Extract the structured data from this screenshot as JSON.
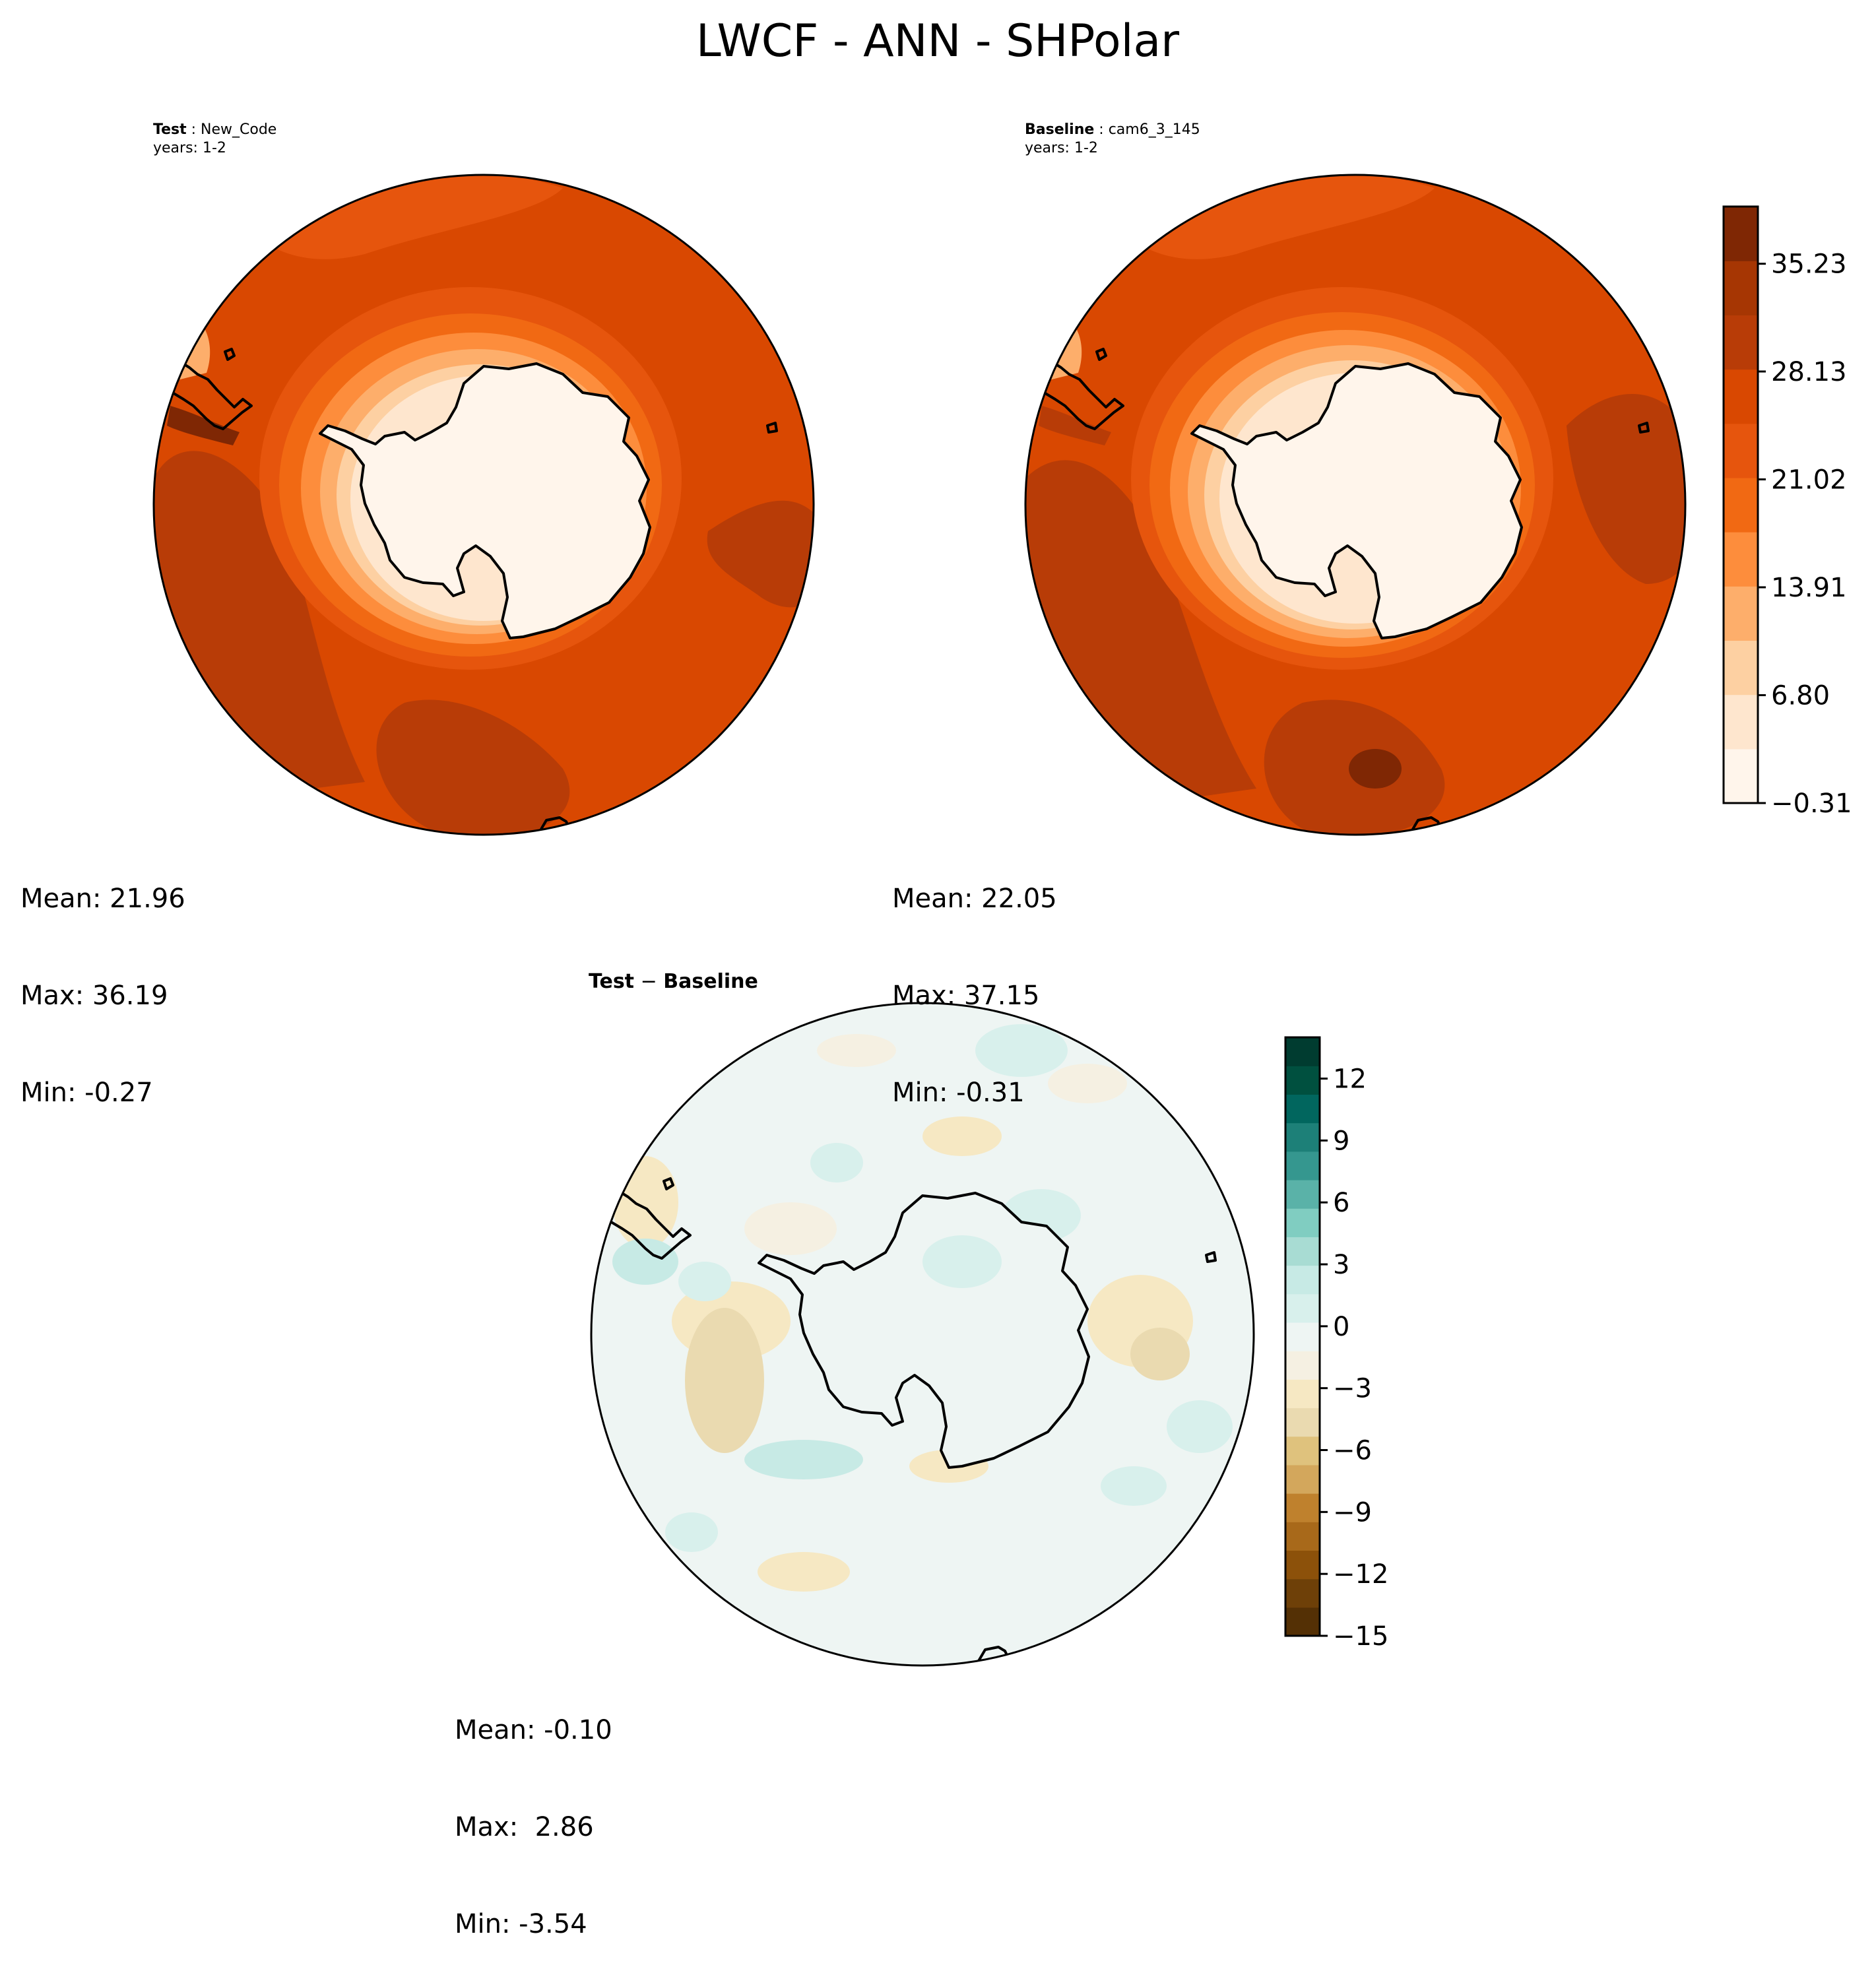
{
  "figure": {
    "title": "LWCF - ANN - SHPolar"
  },
  "panels": {
    "test": {
      "label_bold": "Test",
      "label_name": "New_Code",
      "years": "years: 1-2",
      "stats": {
        "mean": "Mean: 21.96",
        "max": "Max: 36.19",
        "min": "Min: -0.27"
      }
    },
    "baseline": {
      "label_bold": "Baseline",
      "label_name": "cam6_3_145",
      "years": "years: 1-2",
      "stats": {
        "mean": "Mean: 22.05",
        "max": "Max: 37.15",
        "min": "Min: -0.31"
      }
    },
    "diff": {
      "label_bold_1": "Test",
      "label_op": "−",
      "label_bold_2": "Baseline",
      "stats": {
        "mean": "Mean: -0.10",
        "max": "Max:  2.86",
        "min": "Min: -3.54"
      }
    }
  },
  "colorbar_main": {
    "ticks": [
      "35.23",
      "28.13",
      "21.02",
      "13.91",
      "6.80",
      "−0.31"
    ],
    "tick_values": [
      35.23,
      28.13,
      21.02,
      13.91,
      6.8,
      -0.31
    ],
    "range": [
      -0.31,
      39.0
    ],
    "colors": [
      "#fff5eb",
      "#fee6ce",
      "#fdd0a2",
      "#fdae6b",
      "#fd8d3c",
      "#f16913",
      "#e6550d",
      "#d94801",
      "#b83c07",
      "#a63603",
      "#7f2704"
    ]
  },
  "colorbar_diff": {
    "ticks": [
      "12",
      "9",
      "6",
      "3",
      "0",
      "−3",
      "−6",
      "−9",
      "−12",
      "−15"
    ],
    "tick_values": [
      12,
      9,
      6,
      3,
      0,
      -3,
      -6,
      -9,
      -12,
      -15
    ],
    "range": [
      -15,
      14
    ],
    "colors": [
      "#543005",
      "#6e4008",
      "#8c510a",
      "#a8691a",
      "#bf812d",
      "#d3a75c",
      "#dfc27d",
      "#eadab0",
      "#f6e8c3",
      "#f5f0e2",
      "#eef5f3",
      "#d8f0ec",
      "#c7eae5",
      "#a8dcd3",
      "#80cdc1",
      "#5ab2a8",
      "#35978f",
      "#1d8078",
      "#01665e",
      "#00503f",
      "#003c30"
    ]
  },
  "chart_data": [
    {
      "type": "heatmap",
      "title": "LWCF - ANN - SHPolar",
      "panel": "Test",
      "case": "New_Code",
      "years": "1-2",
      "projection": "south polar stereographic",
      "mean": 21.96,
      "max": 36.19,
      "min": -0.27,
      "colorbar_ticks": [
        35.23,
        28.13,
        21.02,
        13.91,
        6.8,
        -0.31
      ]
    },
    {
      "type": "heatmap",
      "panel": "Baseline",
      "case": "cam6_3_145",
      "years": "1-2",
      "projection": "south polar stereographic",
      "mean": 22.05,
      "max": 37.15,
      "min": -0.31,
      "colorbar_ticks": [
        35.23,
        28.13,
        21.02,
        13.91,
        6.8,
        -0.31
      ]
    },
    {
      "type": "heatmap",
      "panel": "Test − Baseline",
      "projection": "south polar stereographic",
      "mean": -0.1,
      "max": 2.86,
      "min": -3.54,
      "colorbar_ticks": [
        12,
        9,
        6,
        3,
        0,
        -3,
        -6,
        -9,
        -12,
        -15
      ]
    }
  ]
}
